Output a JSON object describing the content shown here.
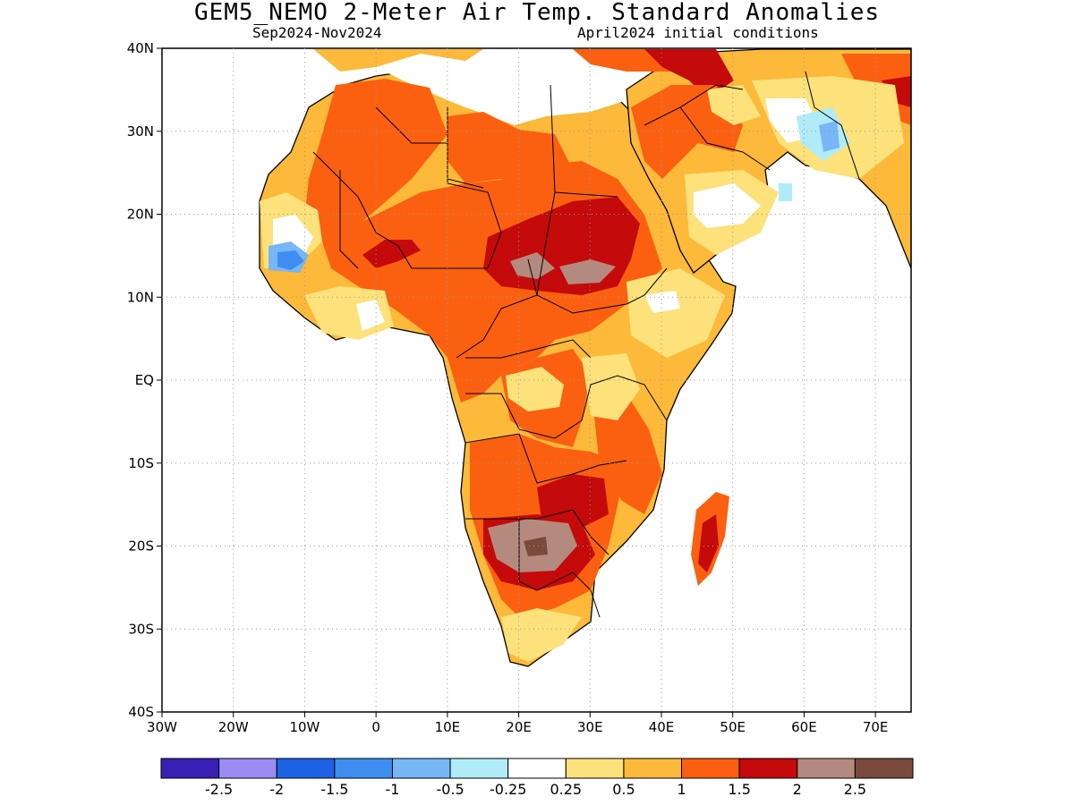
{
  "title": "GEM5_NEMO 2-Meter Air Temp. Standard Anomalies",
  "subtitle_left": "Sep2024-Nov2024",
  "subtitle_right": "April2024 initial conditions",
  "map": {
    "region": "Africa and Arabian Peninsula",
    "lon_range": [
      -30,
      75
    ],
    "lat_range": [
      -40,
      40
    ],
    "lat_labels": [
      "40N",
      "30N",
      "20N",
      "10N",
      "EQ",
      "10S",
      "20S",
      "30S",
      "40S"
    ],
    "lon_labels": [
      "30W",
      "20W",
      "10W",
      "0",
      "10E",
      "20E",
      "30E",
      "40E",
      "50E",
      "60E",
      "70E"
    ],
    "grid": "dotted"
  },
  "colorbar": {
    "colors": [
      "#3a1fb4",
      "#9b8cf5",
      "#1e63e6",
      "#3d8ef0",
      "#78b6f5",
      "#b0ecf8",
      "#ffffff",
      "#fde17a",
      "#fcb93a",
      "#fb6010",
      "#c40a0a",
      "#b48a7e",
      "#7a4a3c"
    ],
    "labels": [
      "-2.5",
      "-2",
      "-1.5",
      "-1",
      "-0.5",
      "-0.25",
      "0.25",
      "0.5",
      "1",
      "1.5",
      "2",
      "2.5"
    ]
  }
}
